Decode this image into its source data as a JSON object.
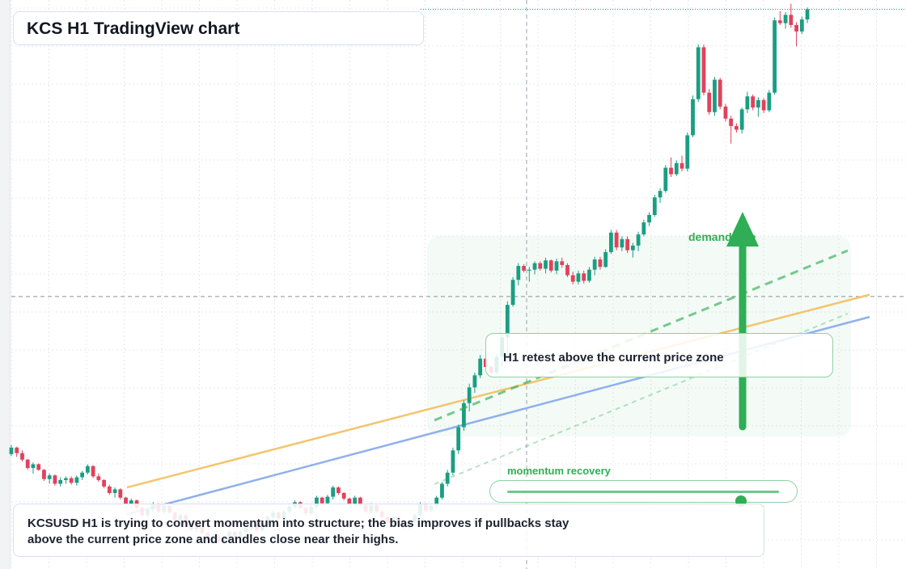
{
  "title": "KCS H1 TradingView chart",
  "caption": "KCSUSD H1 is trying to convert momentum into structure; the bias improves if pullbacks stay above the current price zone and candles close near their highs.",
  "annotations": {
    "demand_label": "demand ride",
    "note": "H1 retest above the current price zone",
    "momentum_label": "momentum recovery",
    "momentum_level": 0.86
  },
  "colors": {
    "bull": "#1a9e83",
    "bear": "#e0425c",
    "accent_green": "#2fae55",
    "ma_fast": "#f3c56d",
    "ma_slow": "#8fb0ec",
    "grid": "#e6e8ec"
  },
  "chart_data": {
    "type": "candlestick",
    "symbol": "KCSUSD",
    "timeframe": "H1",
    "grid": true,
    "crosshair": true,
    "candles": [
      [
        100,
        101,
        99.8,
        100.7
      ],
      [
        100.7,
        100.8,
        99.7,
        100.1
      ],
      [
        100.1,
        100.4,
        99.2,
        99.4
      ],
      [
        99.4,
        99.5,
        98.3,
        98.5
      ],
      [
        98.5,
        99.1,
        97.9,
        98.9
      ],
      [
        98.9,
        99,
        98.2,
        98.3
      ],
      [
        98.3,
        98.4,
        97.1,
        97.3
      ],
      [
        97.3,
        97.9,
        96.8,
        97.7
      ],
      [
        97.7,
        97.8,
        96.6,
        96.8
      ],
      [
        96.8,
        97.5,
        96.5,
        97.2
      ],
      [
        97.2,
        97.6,
        96.8,
        97.4
      ],
      [
        97.4,
        97.6,
        96.7,
        96.9
      ],
      [
        96.9,
        97.7,
        96.6,
        97.5
      ],
      [
        97.5,
        98.2,
        97.2,
        98
      ],
      [
        98,
        98.9,
        97.8,
        98.7
      ],
      [
        98.7,
        98.8,
        97.4,
        97.6
      ],
      [
        97.6,
        97.9,
        97,
        97.2
      ],
      [
        97.2,
        97.3,
        96.3,
        96.5
      ],
      [
        96.5,
        96.7,
        95.6,
        95.8
      ],
      [
        95.8,
        96.4,
        95.3,
        96.2
      ],
      [
        96.2,
        96.3,
        95.1,
        95.3
      ],
      [
        95.3,
        95.4,
        94.4,
        94.6
      ],
      [
        94.6,
        95.2,
        94.2,
        95
      ],
      [
        95,
        95.1,
        94,
        94.2
      ],
      [
        94.2,
        94.3,
        93.2,
        93.4
      ],
      [
        93.4,
        94.2,
        93.1,
        94
      ],
      [
        94,
        94.8,
        93.7,
        94.6
      ],
      [
        94.6,
        94.7,
        93.6,
        93.8
      ],
      [
        93.8,
        94.6,
        93.6,
        94.4
      ],
      [
        94.4,
        94.5,
        93.5,
        93.7
      ],
      [
        93.7,
        93.8,
        92.7,
        92.9
      ],
      [
        92.9,
        93.6,
        92.6,
        93.4
      ],
      [
        93.4,
        93.5,
        92.3,
        92.5
      ],
      [
        92.5,
        92.6,
        91.7,
        91.9
      ],
      [
        91.9,
        92.5,
        91.5,
        92.3
      ],
      [
        92.3,
        92.4,
        91.3,
        91.5
      ],
      [
        91.5,
        91.6,
        90.7,
        90.9
      ],
      [
        90.9,
        91.4,
        90.6,
        91.2
      ],
      [
        91.2,
        91.3,
        90.3,
        90.5
      ],
      [
        90.5,
        91.3,
        90.2,
        91.1
      ],
      [
        91.1,
        91.8,
        90.9,
        91.6
      ],
      [
        91.6,
        91.7,
        90.8,
        91
      ],
      [
        91,
        91.8,
        90.8,
        91.6
      ],
      [
        91.6,
        92.2,
        91.4,
        92
      ],
      [
        92,
        92.6,
        91.8,
        92.4
      ],
      [
        92.4,
        92.5,
        91.6,
        91.8
      ],
      [
        91.8,
        92.7,
        91.6,
        92.5
      ],
      [
        92.5,
        93.4,
        92.3,
        93.2
      ],
      [
        93.2,
        93.9,
        93,
        93.7
      ],
      [
        93.7,
        93.8,
        92.9,
        93.1
      ],
      [
        93.1,
        94,
        92.9,
        93.8
      ],
      [
        93.8,
        94.5,
        93.6,
        94.3
      ],
      [
        94.3,
        95,
        94.1,
        94.8
      ],
      [
        94.8,
        94.9,
        94,
        94.2
      ],
      [
        94.2,
        94.3,
        93.4,
        93.6
      ],
      [
        93.6,
        94.5,
        93.4,
        94.3
      ],
      [
        94.3,
        95.5,
        94,
        95.3
      ],
      [
        95.3,
        95.4,
        94.5,
        94.7
      ],
      [
        94.7,
        95.6,
        94.5,
        95.4
      ],
      [
        95.4,
        96.6,
        95.1,
        96.4
      ],
      [
        96.4,
        96.5,
        95.6,
        95.8
      ],
      [
        95.8,
        95.9,
        95,
        95.2
      ],
      [
        95.2,
        95.3,
        94.4,
        94.6
      ],
      [
        94.6,
        95.5,
        94.4,
        95.3
      ],
      [
        95.3,
        95.4,
        94.3,
        94.5
      ],
      [
        94.5,
        94.6,
        93.6,
        93.8
      ],
      [
        93.8,
        94.7,
        93.6,
        94.5
      ],
      [
        94.5,
        94.6,
        93.6,
        93.8
      ],
      [
        93.8,
        93.9,
        93,
        93.2
      ],
      [
        93.2,
        93.3,
        92.4,
        92.6
      ],
      [
        92.6,
        93.4,
        92.4,
        93.2
      ],
      [
        93.2,
        93.3,
        92.4,
        92.6
      ],
      [
        92.6,
        92.7,
        91.9,
        92.1
      ],
      [
        92.1,
        92.9,
        91.9,
        92.7
      ],
      [
        92.7,
        93.6,
        92.5,
        93.4
      ],
      [
        93.4,
        94.8,
        93.2,
        94.6
      ],
      [
        94.6,
        94.7,
        93.7,
        93.9
      ],
      [
        93.9,
        94.6,
        93.7,
        94.4
      ],
      [
        94.4,
        95.5,
        94.2,
        95.3
      ],
      [
        95.3,
        97,
        95.1,
        96.8
      ],
      [
        96.8,
        98.3,
        96.5,
        98
      ],
      [
        98,
        100.7,
        97.7,
        100.4
      ],
      [
        100.4,
        103.2,
        100,
        102.9
      ],
      [
        102.9,
        105.8,
        102.5,
        105.5
      ],
      [
        105.5,
        107.6,
        104.6,
        107.2
      ],
      [
        107.2,
        108.8,
        106.6,
        108.5
      ],
      [
        108.5,
        110.7,
        108.2,
        110.3
      ],
      [
        110.3,
        110.5,
        109.2,
        109.4
      ],
      [
        109.4,
        109.6,
        108.6,
        108.8
      ],
      [
        108.8,
        110.8,
        108.6,
        110.5
      ],
      [
        110.5,
        112.9,
        109.5,
        112.6
      ],
      [
        112.6,
        116.5,
        109.8,
        116.1
      ],
      [
        116.1,
        119.1,
        115.9,
        118.8
      ],
      [
        118.8,
        120.6,
        118.2,
        120.3
      ],
      [
        120.3,
        120.5,
        119.6,
        119.8
      ],
      [
        119.8,
        120.2,
        118.6,
        119.9
      ],
      [
        119.9,
        120.8,
        119.4,
        120.6
      ],
      [
        120.6,
        120.8,
        119.8,
        120
      ],
      [
        120,
        121.2,
        119.5,
        120.9
      ],
      [
        120.9,
        121,
        119.6,
        119.8
      ],
      [
        119.8,
        121.1,
        119.4,
        120.8
      ],
      [
        120.8,
        121.2,
        120.1,
        120.4
      ],
      [
        120.4,
        120.6,
        119.1,
        119.3
      ],
      [
        119.3,
        119.7,
        118.3,
        118.6
      ],
      [
        118.6,
        119.8,
        118.3,
        119.5
      ],
      [
        119.5,
        119.8,
        118.4,
        118.7
      ],
      [
        118.7,
        120.2,
        118.5,
        119.9
      ],
      [
        119.9,
        121.3,
        119.3,
        121
      ],
      [
        121,
        121.3,
        119.9,
        120.2
      ],
      [
        120.2,
        122.1,
        120.1,
        121.8
      ],
      [
        121.8,
        124.2,
        121.6,
        123.9
      ],
      [
        123.9,
        124.2,
        122,
        122.3
      ],
      [
        122.3,
        123.5,
        121.9,
        123.2
      ],
      [
        123.2,
        123.5,
        121.7,
        122
      ],
      [
        122,
        122.8,
        121.2,
        122.5
      ],
      [
        122.5,
        124,
        121.9,
        123.7
      ],
      [
        123.7,
        125.3,
        123.5,
        125
      ],
      [
        125,
        126.1,
        124.6,
        125.8
      ],
      [
        125.8,
        128,
        125.6,
        127.7
      ],
      [
        127.7,
        128.7,
        127.1,
        128.4
      ],
      [
        128.4,
        131.2,
        128.2,
        130.9
      ],
      [
        130.9,
        132,
        129.9,
        130.2
      ],
      [
        130.2,
        131.7,
        130,
        131.4
      ],
      [
        131.4,
        132.2,
        130.5,
        130.8
      ],
      [
        130.8,
        134.7,
        130.5,
        134.4
      ],
      [
        134.4,
        138.7,
        134.2,
        138.3
      ],
      [
        138.3,
        144.2,
        138,
        143.9
      ],
      [
        143.9,
        144.2,
        138.7,
        139
      ],
      [
        139,
        139.4,
        136.6,
        136.9
      ],
      [
        136.9,
        140.7,
        136.5,
        140.4
      ],
      [
        140.4,
        140.6,
        137.2,
        137.5
      ],
      [
        137.5,
        137.8,
        135.9,
        136.2
      ],
      [
        136.2,
        136.5,
        133.5,
        135.4
      ],
      [
        135.4,
        135.7,
        134.7,
        135
      ],
      [
        135,
        137.4,
        134.6,
        137.2
      ],
      [
        137.2,
        139.1,
        136.8,
        138.6
      ],
      [
        138.6,
        138.8,
        137.1,
        137.4
      ],
      [
        137.4,
        138.5,
        136.4,
        138.2
      ],
      [
        138.2,
        138.4,
        136.8,
        137.1
      ],
      [
        137.1,
        139.3,
        136.9,
        139
      ],
      [
        139,
        147.1,
        138.8,
        146.8
      ],
      [
        146.8,
        147.8,
        146.3,
        146.5
      ],
      [
        146.5,
        147.7,
        145.9,
        147.4
      ],
      [
        147.4,
        148.6,
        146,
        146.3
      ],
      [
        146.3,
        146.6,
        144,
        145.6
      ],
      [
        145.6,
        147.2,
        145.3,
        146.9
      ],
      [
        146.9,
        148.2,
        146.5,
        148
      ]
    ],
    "moving_averages": [
      {
        "period": "fast",
        "from": 96.4,
        "to": 117.2
      },
      {
        "period": "slow",
        "from": 93.5,
        "to": 114.8
      }
    ],
    "horizontal_guide": 117.0,
    "top_guide": 148.0
  }
}
